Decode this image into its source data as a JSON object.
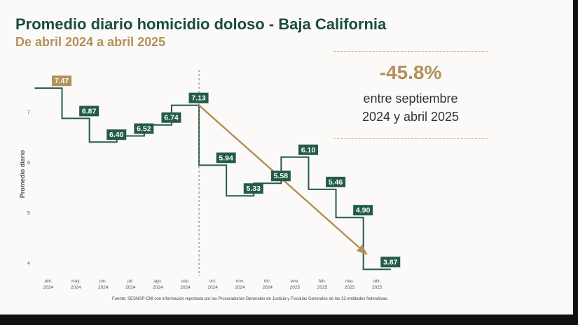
{
  "header": {
    "title": "Promedio diario homicidio doloso - Baja California",
    "subtitle": "De abril 2024 a abril 2025"
  },
  "kpi": {
    "value": "-45.8%",
    "caption_line1": "entre septiembre",
    "caption_line2": "2024 y abril 2025"
  },
  "footer": {
    "source": "Fuente: SESNSP-CNI con información reportada por las Procuradurías Generales de Justicia y Fiscalías Generales de las 32 entidades federativas."
  },
  "colors": {
    "green": "#245b47",
    "gold": "#b3915a",
    "title": "#1b4d3e"
  },
  "chart_data": {
    "type": "line",
    "step": true,
    "ylabel": "Promedio diario",
    "ylim": [
      3.8,
      7.75
    ],
    "yticks": [
      4,
      5,
      6,
      7
    ],
    "categories": [
      [
        "abr.",
        "2024"
      ],
      [
        "may.",
        "2024"
      ],
      [
        "jun.",
        "2024"
      ],
      [
        "jul.",
        "2024"
      ],
      [
        "ago.",
        "2024"
      ],
      [
        "sep.",
        "2024"
      ],
      [
        "oct.",
        "2024"
      ],
      [
        "nov.",
        "2024"
      ],
      [
        "dic.",
        "2024"
      ],
      [
        "ene.",
        "2025"
      ],
      [
        "feb.",
        "2025"
      ],
      [
        "mar.",
        "2025"
      ],
      [
        "abr.",
        "2025"
      ]
    ],
    "values": [
      7.47,
      6.87,
      6.4,
      6.52,
      6.74,
      7.13,
      5.94,
      5.33,
      5.58,
      6.1,
      5.46,
      4.9,
      3.87
    ],
    "value_labels": [
      "7.47",
      "6.87",
      "6.40",
      "6.52",
      "6.74",
      "7.13",
      "5.94",
      "5.33",
      "5.58",
      "6.10",
      "5.46",
      "4.90",
      "3.87"
    ],
    "highlight_first": true,
    "divider_after_index": 5,
    "trend_arrow": {
      "from_index": 5,
      "to_index": 12
    },
    "grid": false,
    "legend": "none"
  }
}
